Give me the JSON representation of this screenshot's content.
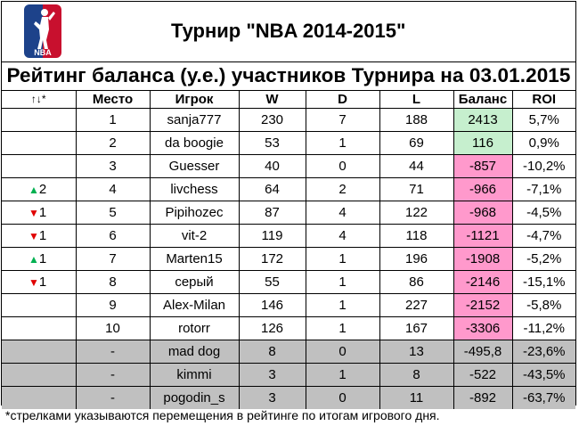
{
  "header": {
    "title": "Турнир \"NBA 2014-2015\"",
    "logo_text": "NBA"
  },
  "rating_title": "Рейтинг баланса (у.е.) участников Турнира на 03.01.2015",
  "columns": [
    "↑↓*",
    "Место",
    "Игрок",
    "W",
    "D",
    "L",
    "Баланс",
    "ROI"
  ],
  "rows": [
    {
      "move_dir": "",
      "move": "",
      "place": "1",
      "player": "sanja777",
      "w": "230",
      "d": "7",
      "l": "188",
      "balance": "2413",
      "roi": "5,7%",
      "style": "green"
    },
    {
      "move_dir": "",
      "move": "",
      "place": "2",
      "player": "da boogie",
      "w": "53",
      "d": "1",
      "l": "69",
      "balance": "116",
      "roi": "0,9%",
      "style": "green"
    },
    {
      "move_dir": "",
      "move": "",
      "place": "3",
      "player": "Guesser",
      "w": "40",
      "d": "0",
      "l": "44",
      "balance": "-857",
      "roi": "-10,2%",
      "style": "pink"
    },
    {
      "move_dir": "up",
      "move": "2",
      "place": "4",
      "player": "livchess",
      "w": "64",
      "d": "2",
      "l": "71",
      "balance": "-966",
      "roi": "-7,1%",
      "style": "pink"
    },
    {
      "move_dir": "down",
      "move": "1",
      "place": "5",
      "player": "Pipihozec",
      "w": "87",
      "d": "4",
      "l": "122",
      "balance": "-968",
      "roi": "-4,5%",
      "style": "pink"
    },
    {
      "move_dir": "down",
      "move": "1",
      "place": "6",
      "player": "vit-2",
      "w": "119",
      "d": "4",
      "l": "118",
      "balance": "-1121",
      "roi": "-4,7%",
      "style": "pink"
    },
    {
      "move_dir": "up",
      "move": "1",
      "place": "7",
      "player": "Marten15",
      "w": "172",
      "d": "1",
      "l": "196",
      "balance": "-1908",
      "roi": "-5,2%",
      "style": "pink"
    },
    {
      "move_dir": "down",
      "move": "1",
      "place": "8",
      "player": "серый",
      "w": "55",
      "d": "1",
      "l": "86",
      "balance": "-2146",
      "roi": "-15,1%",
      "style": "pink"
    },
    {
      "move_dir": "",
      "move": "",
      "place": "9",
      "player": "Alex-Milan",
      "w": "146",
      "d": "1",
      "l": "227",
      "balance": "-2152",
      "roi": "-5,8%",
      "style": "pink"
    },
    {
      "move_dir": "",
      "move": "",
      "place": "10",
      "player": "rotorr",
      "w": "126",
      "d": "1",
      "l": "167",
      "balance": "-3306",
      "roi": "-11,2%",
      "style": "pink"
    },
    {
      "move_dir": "",
      "move": "",
      "place": "-",
      "player": "mad dog",
      "w": "8",
      "d": "0",
      "l": "13",
      "balance": "-495,8",
      "roi": "-23,6%",
      "style": "grey"
    },
    {
      "move_dir": "",
      "move": "",
      "place": "-",
      "player": "kimmi",
      "w": "3",
      "d": "1",
      "l": "8",
      "balance": "-522",
      "roi": "-43,5%",
      "style": "grey"
    },
    {
      "move_dir": "",
      "move": "",
      "place": "-",
      "player": "pogodin_s",
      "w": "3",
      "d": "0",
      "l": "11",
      "balance": "-892",
      "roi": "-63,7%",
      "style": "grey"
    }
  ],
  "footnote": "*стрелками указываются перемещения в рейтинге по итогам игрового дня.",
  "colors": {
    "balance_positive": "#c6efce",
    "balance_negative": "#ff99cc",
    "excluded_row": "#c0c0c0",
    "arrow_up": "#00b050",
    "arrow_down": "#e00000",
    "logo_blue": "#1d428a",
    "logo_red": "#c8102e"
  }
}
